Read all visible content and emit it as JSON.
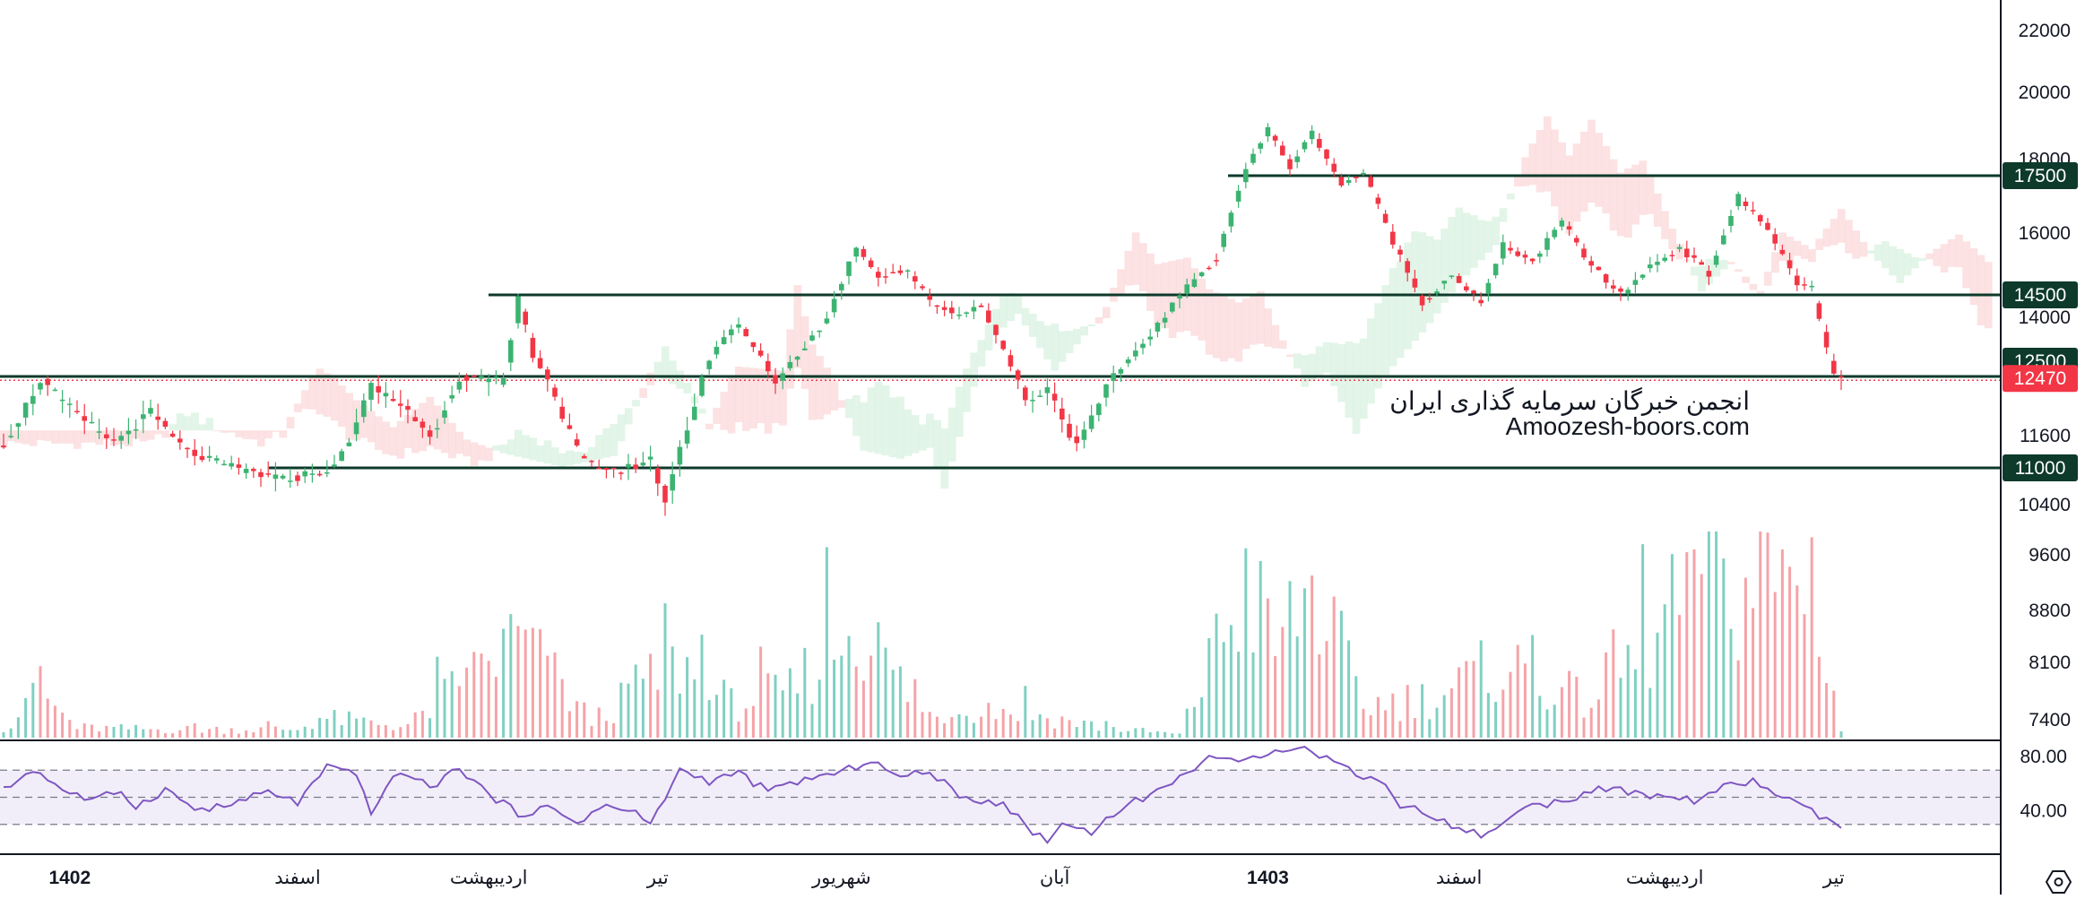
{
  "chart_data": [
    {
      "type": "candlestick",
      "title": "",
      "ylim": [
        7000,
        22600
      ],
      "price_ticks": [
        {
          "value": 22000,
          "label": "22000"
        },
        {
          "value": 20000,
          "label": "20000"
        },
        {
          "value": 18000,
          "label": "18000"
        },
        {
          "value": 16000,
          "label": "16000"
        },
        {
          "value": 14000,
          "label": "14000"
        },
        {
          "value": 11600,
          "label": "11600"
        },
        {
          "value": 10400,
          "label": "10400"
        },
        {
          "value": 9600,
          "label": "9600"
        },
        {
          "value": 8800,
          "label": "8800"
        },
        {
          "value": 8100,
          "label": "8100"
        },
        {
          "value": 7400,
          "label": "7400"
        }
      ],
      "levels": [
        {
          "value": 17500,
          "label": "17500",
          "color": "#0d3a2b",
          "style": "solid"
        },
        {
          "value": 14500,
          "label": "14500",
          "color": "#0d3a2b",
          "style": "solid"
        },
        {
          "value": 12500,
          "label": "12500",
          "color": "#0d3a2b",
          "style": "solid"
        },
        {
          "value": 11000,
          "label": "11000",
          "color": "#0d3a2b",
          "style": "solid"
        }
      ],
      "last_price": {
        "value": 12470,
        "label": "12470",
        "color": "#f23645"
      },
      "time_labels": [
        {
          "label": "1402",
          "bold": true,
          "bar": 9
        },
        {
          "label": "اسفند",
          "bold": false,
          "bar": 40
        },
        {
          "label": "اردیبهشت",
          "bold": false,
          "bar": 66
        },
        {
          "label": "تیر",
          "bold": false,
          "bar": 89
        },
        {
          "label": "شهریور",
          "bold": false,
          "bar": 114
        },
        {
          "label": "آبان",
          "bold": false,
          "bar": 143
        },
        {
          "label": "1403",
          "bold": true,
          "bar": 172
        },
        {
          "label": "اسفند",
          "bold": false,
          "bar": 198
        },
        {
          "label": "اردیبهشت",
          "bold": false,
          "bar": 226
        },
        {
          "label": "تیر",
          "bold": false,
          "bar": 249
        }
      ],
      "close_path": [
        [
          0,
          11450
        ],
        [
          5,
          12450
        ],
        [
          10,
          11900
        ],
        [
          15,
          11500
        ],
        [
          20,
          11950
        ],
        [
          25,
          11300
        ],
        [
          30,
          11050
        ],
        [
          38,
          10800
        ],
        [
          45,
          11000
        ],
        [
          50,
          12350
        ],
        [
          55,
          12000
        ],
        [
          58,
          11550
        ],
        [
          62,
          12500
        ],
        [
          68,
          12400
        ],
        [
          70,
          14450
        ],
        [
          72,
          13050
        ],
        [
          76,
          11900
        ],
        [
          79,
          11100
        ],
        [
          84,
          10950
        ],
        [
          88,
          11150
        ],
        [
          90,
          10450
        ],
        [
          92,
          11350
        ],
        [
          94,
          12100
        ],
        [
          97,
          13300
        ],
        [
          100,
          13800
        ],
        [
          105,
          12400
        ],
        [
          108,
          13050
        ],
        [
          112,
          13950
        ],
        [
          116,
          15700
        ],
        [
          119,
          14950
        ],
        [
          123,
          15100
        ],
        [
          126,
          14350
        ],
        [
          130,
          14050
        ],
        [
          133,
          14300
        ],
        [
          136,
          13150
        ],
        [
          139,
          12100
        ],
        [
          142,
          12350
        ],
        [
          146,
          11400
        ],
        [
          150,
          12300
        ],
        [
          155,
          13350
        ],
        [
          160,
          14500
        ],
        [
          165,
          15400
        ],
        [
          169,
          17700
        ],
        [
          172,
          18900
        ],
        [
          175,
          17750
        ],
        [
          178,
          18800
        ],
        [
          182,
          17250
        ],
        [
          185,
          17600
        ],
        [
          189,
          15800
        ],
        [
          193,
          14300
        ],
        [
          197,
          15000
        ],
        [
          201,
          14300
        ],
        [
          204,
          15700
        ],
        [
          208,
          15300
        ],
        [
          212,
          16300
        ],
        [
          216,
          15200
        ],
        [
          220,
          14500
        ],
        [
          224,
          15200
        ],
        [
          228,
          15650
        ],
        [
          232,
          15000
        ],
        [
          236,
          16950
        ],
        [
          240,
          16100
        ],
        [
          244,
          14800
        ],
        [
          246,
          14650
        ],
        [
          249,
          12500
        ],
        [
          250,
          12470
        ]
      ],
      "volume": {
        "ylim": [
          0,
          1
        ],
        "note": "relative volume bars under price"
      },
      "volume_levels": [
        [
          0,
          0.07
        ],
        [
          5,
          0.26
        ],
        [
          10,
          0.06
        ],
        [
          20,
          0.05
        ],
        [
          40,
          0.05
        ],
        [
          43,
          0.12
        ],
        [
          55,
          0.07
        ],
        [
          70,
          0.6
        ],
        [
          80,
          0.1
        ],
        [
          92,
          0.45
        ],
        [
          99,
          0.2
        ],
        [
          107,
          0.28
        ],
        [
          116,
          0.72
        ],
        [
          125,
          0.14
        ],
        [
          135,
          0.18
        ],
        [
          150,
          0.06
        ],
        [
          160,
          0.02
        ],
        [
          169,
          0.93
        ],
        [
          173,
          0.55
        ],
        [
          178,
          0.9
        ],
        [
          185,
          0.2
        ],
        [
          195,
          0.25
        ],
        [
          204,
          0.45
        ],
        [
          215,
          0.22
        ],
        [
          232,
          0.85
        ],
        [
          246,
          1.0
        ],
        [
          250,
          0.04
        ]
      ]
    },
    {
      "type": "line",
      "title": "",
      "ylim": [
        10,
        92
      ],
      "rsi_ticks": [
        {
          "value": 80,
          "label": "80.00"
        },
        {
          "value": 40,
          "label": "40.00"
        }
      ],
      "bands": {
        "upper": 70,
        "middle": 50,
        "lower": 30
      },
      "line_color": "#7e57c2",
      "band_color": "#7e57c2",
      "values": [
        [
          0,
          55
        ],
        [
          4,
          71
        ],
        [
          8,
          56
        ],
        [
          12,
          47
        ],
        [
          16,
          55
        ],
        [
          18,
          43
        ],
        [
          22,
          56
        ],
        [
          26,
          41
        ],
        [
          30,
          43
        ],
        [
          36,
          54
        ],
        [
          40,
          46
        ],
        [
          44,
          72
        ],
        [
          48,
          66
        ],
        [
          50,
          40
        ],
        [
          54,
          70
        ],
        [
          58,
          57
        ],
        [
          62,
          72
        ],
        [
          66,
          52
        ],
        [
          70,
          38
        ],
        [
          74,
          42
        ],
        [
          78,
          32
        ],
        [
          82,
          44
        ],
        [
          86,
          38
        ],
        [
          88,
          30
        ],
        [
          92,
          70
        ],
        [
          96,
          62
        ],
        [
          100,
          68
        ],
        [
          104,
          54
        ],
        [
          108,
          62
        ],
        [
          114,
          68
        ],
        [
          118,
          78
        ],
        [
          122,
          64
        ],
        [
          126,
          70
        ],
        [
          130,
          50
        ],
        [
          136,
          46
        ],
        [
          140,
          24
        ],
        [
          142,
          19
        ],
        [
          144,
          30
        ],
        [
          148,
          25
        ],
        [
          152,
          42
        ],
        [
          156,
          52
        ],
        [
          160,
          64
        ],
        [
          164,
          81
        ],
        [
          168,
          74
        ],
        [
          172,
          84
        ],
        [
          176,
          88
        ],
        [
          180,
          79
        ],
        [
          184,
          68
        ],
        [
          188,
          60
        ],
        [
          190,
          44
        ],
        [
          194,
          38
        ],
        [
          198,
          26
        ],
        [
          202,
          22
        ],
        [
          206,
          41
        ],
        [
          210,
          45
        ],
        [
          214,
          51
        ],
        [
          218,
          57
        ],
        [
          222,
          52
        ],
        [
          226,
          50
        ],
        [
          230,
          48
        ],
        [
          234,
          57
        ],
        [
          238,
          62
        ],
        [
          242,
          50
        ],
        [
          246,
          39
        ],
        [
          249,
          30
        ],
        [
          250,
          28
        ]
      ]
    }
  ],
  "watermark": {
    "line1": "انجمن خبرگان سرمایه گذاری ایران",
    "line2": "Amoozesh-boors.com"
  },
  "colors": {
    "up": "#26a69a",
    "down": "#ef5350",
    "up_candle": "#3cb371",
    "down_candle": "#f23645",
    "level_label_bg": "#0d3a2b",
    "cloud_up": "#d6f1de",
    "cloud_down": "#fbd5d7"
  },
  "icons": {
    "settings": "hexagon-settings-icon"
  }
}
